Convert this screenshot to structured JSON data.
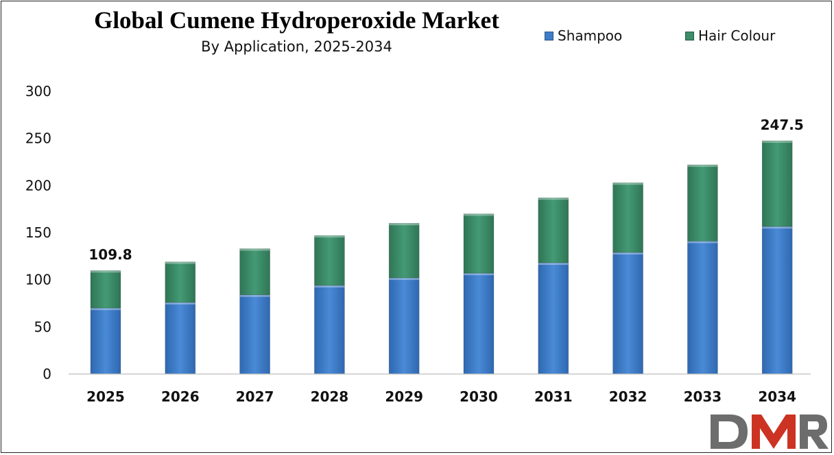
{
  "header": {
    "title": "Global Cumene Hydroperoxide Market",
    "subtitle": "By Application, 2025-2034"
  },
  "legend": {
    "items": [
      {
        "label": "Shampoo",
        "color": "#3f7dc9"
      },
      {
        "label": "Hair Colour",
        "color": "#3d8c6a"
      }
    ]
  },
  "logo": {
    "text": "DMR",
    "colors": {
      "D": "#6d6d6d",
      "M": "#cc3322",
      "R": "#6d6d6d"
    }
  },
  "chart_data": {
    "type": "bar",
    "stacked": true,
    "title": "Global Cumene Hydroperoxide Market",
    "subtitle": "By Application, 2025-2034",
    "categories": [
      "2025",
      "2026",
      "2027",
      "2028",
      "2029",
      "2030",
      "2031",
      "2032",
      "2033",
      "2034"
    ],
    "series": [
      {
        "name": "Shampoo",
        "color": "#3f7dc9",
        "values": [
          70,
          76,
          84,
          94,
          102,
          107,
          118,
          129,
          141,
          156.5
        ]
      },
      {
        "name": "Hair Colour",
        "color": "#3d8c6a",
        "values": [
          39.8,
          43,
          49,
          53,
          58,
          63,
          69,
          74,
          81,
          91
        ]
      }
    ],
    "data_labels": [
      {
        "category": "2025",
        "text": "109.8"
      },
      {
        "category": "2034",
        "text": "247.5"
      }
    ],
    "ylim": [
      0,
      300
    ],
    "yticks": [
      0,
      50,
      100,
      150,
      200,
      250,
      300
    ],
    "xlabel": "",
    "ylabel": "",
    "grid": false,
    "legend_position": "top-right"
  }
}
